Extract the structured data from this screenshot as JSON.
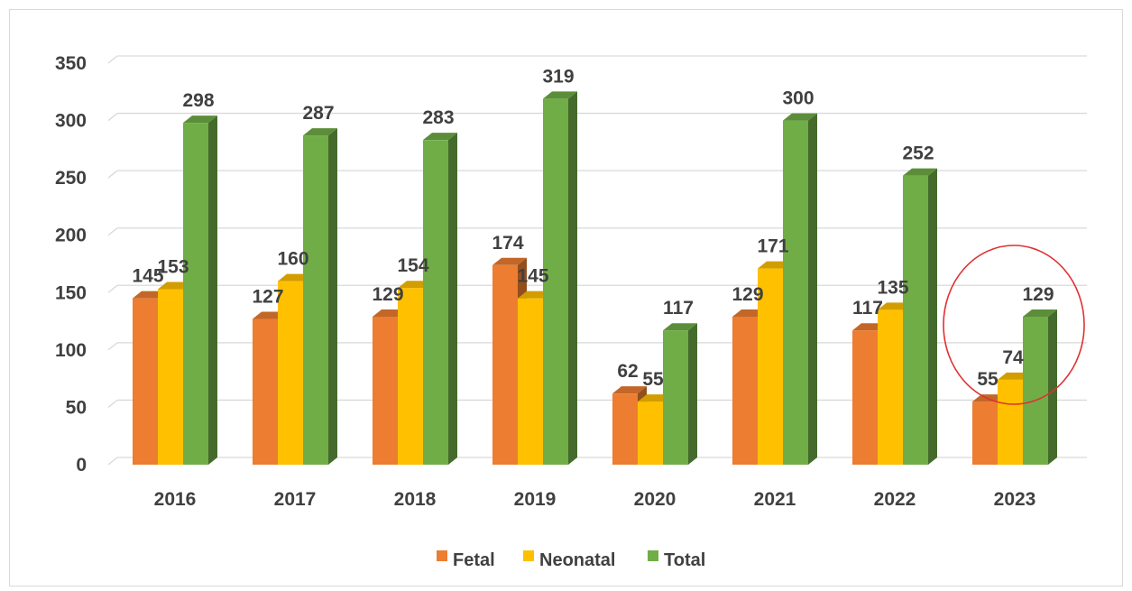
{
  "chart_data": {
    "type": "bar",
    "categories": [
      "2016",
      "2017",
      "2018",
      "2019",
      "2020",
      "2021",
      "2022",
      "2023"
    ],
    "series": [
      {
        "name": "Fetal",
        "color": "#ED7D31",
        "values": [
          145,
          127,
          129,
          174,
          62,
          129,
          117,
          55
        ]
      },
      {
        "name": "Neonatal",
        "color": "#FFC000",
        "values": [
          153,
          160,
          154,
          145,
          55,
          171,
          135,
          74
        ]
      },
      {
        "name": "Total",
        "color": "#70AD47",
        "values": [
          298,
          287,
          283,
          319,
          117,
          300,
          252,
          129
        ]
      }
    ],
    "ylim": [
      0,
      350
    ],
    "yticks": [
      "0",
      "50",
      "100",
      "150",
      "200",
      "250",
      "300",
      "350"
    ],
    "grid": true,
    "legend_position": "bottom",
    "highlight": {
      "category": "2023",
      "shape": "circle",
      "color": "#E03030"
    }
  }
}
